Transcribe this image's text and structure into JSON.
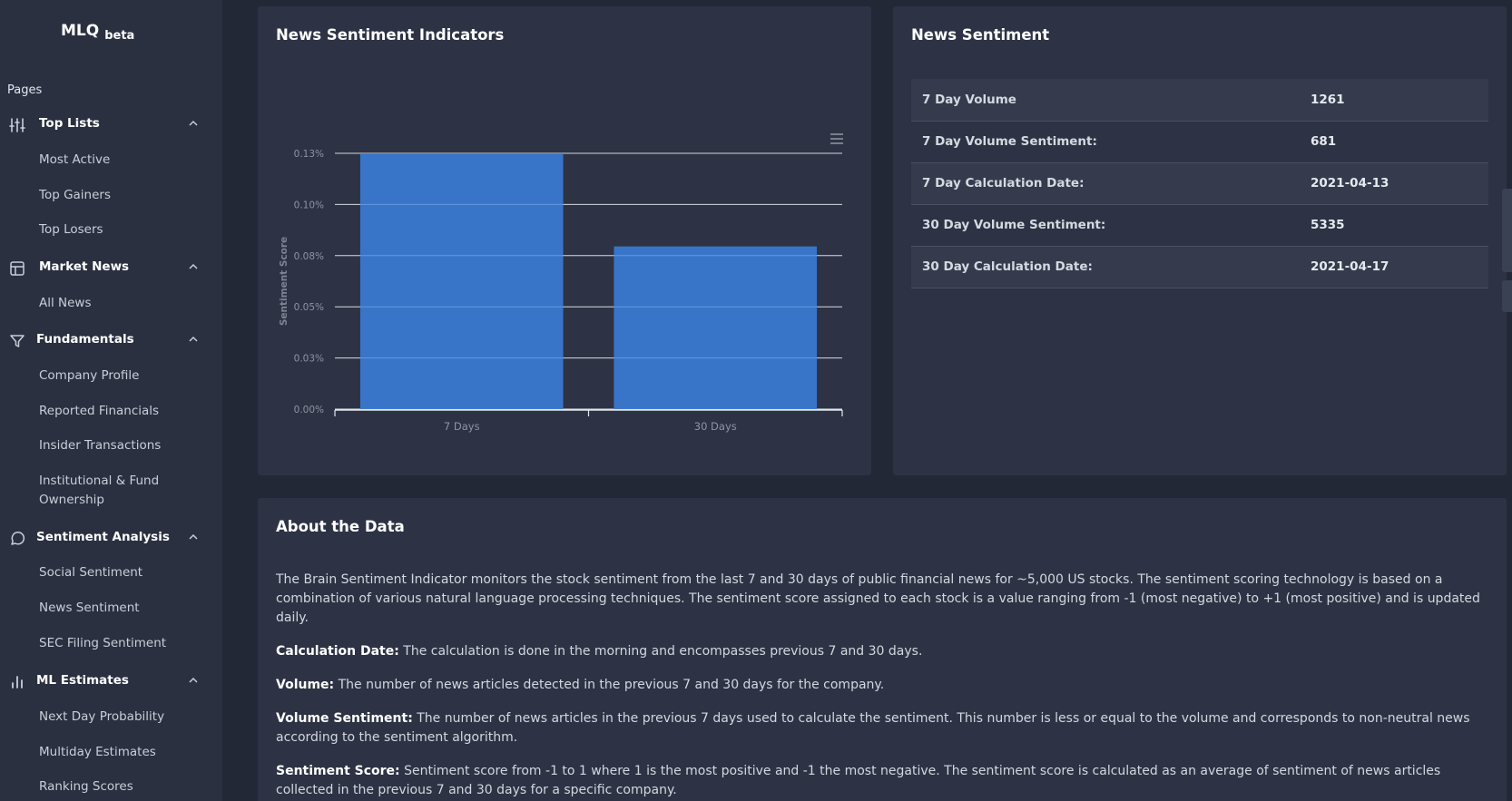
{
  "brand": {
    "name": "MLQ",
    "tag": "beta"
  },
  "sidebar": {
    "pages_label": "Pages",
    "sections": [
      {
        "label": "Top Lists",
        "icon": "sliders-icon",
        "items": [
          "Most Active",
          "Top Gainers",
          "Top Losers"
        ]
      },
      {
        "label": "Market News",
        "icon": "layout-icon",
        "items": [
          "All News"
        ]
      },
      {
        "label": "Fundamentals",
        "icon": "filter-icon",
        "items": [
          "Company Profile",
          "Reported Financials",
          "Insider Transactions",
          "Institutional & Fund Ownership"
        ]
      },
      {
        "label": "Sentiment Analysis",
        "icon": "message-circle-icon",
        "items": [
          "Social Sentiment",
          "News Sentiment",
          "SEC Filing Sentiment"
        ]
      },
      {
        "label": "ML Estimates",
        "icon": "bar-chart-icon",
        "items": [
          "Next Day Probability",
          "Multiday Estimates",
          "Ranking Scores"
        ]
      }
    ]
  },
  "indicators_panel": {
    "title": "News Sentiment Indicators"
  },
  "chart_data": {
    "type": "bar",
    "categories": [
      "7 Days",
      "30 Days"
    ],
    "values": [
      0.125,
      0.0795
    ],
    "ylabel": "Sentiment Score",
    "xlabel": "",
    "ylim": [
      0,
      0.125
    ],
    "yticks": [
      "0.00%",
      "0.03%",
      "0.05%",
      "0.08%",
      "0.10%",
      "0.13%"
    ],
    "bar_color": "#3a7bd5",
    "grid": true
  },
  "sentiment_panel": {
    "title": "News Sentiment",
    "rows": [
      {
        "label": "7 Day Volume",
        "value": "1261"
      },
      {
        "label": "7 Day Volume Sentiment:",
        "value": "681"
      },
      {
        "label": "7 Day Calculation Date:",
        "value": "2021-04-13"
      },
      {
        "label": "30 Day Volume Sentiment:",
        "value": "5335"
      },
      {
        "label": "30 Day Calculation Date:",
        "value": "2021-04-17"
      }
    ]
  },
  "about": {
    "title": "About the Data",
    "intro": "The Brain Sentiment Indicator monitors the stock sentiment from the last 7 and 30 days of public financial news for ~5,000 US stocks. The sentiment scoring technology is based on a combination of various natural language processing techniques. The sentiment score assigned to each stock is a value ranging from -1 (most negative) to +1 (most positive) and is updated daily.",
    "definitions": [
      {
        "term": "Calculation Date:",
        "text": " The calculation is done in the morning and encompasses previous 7 and 30 days."
      },
      {
        "term": "Volume:",
        "text": " The number of news articles detected in the previous 7 and 30 days for the company."
      },
      {
        "term": "Volume Sentiment:",
        "text": " The number of news articles in the previous 7 days used to calculate the sentiment. This number is less or equal to the volume and corresponds to non-neutral news according to the sentiment algorithm."
      },
      {
        "term": "Sentiment Score:",
        "text": " Sentiment score from -1 to 1 where 1 is the most positive and -1 the most negative. The sentiment score is calculated as an average of sentiment of news articles collected in the previous 7 and 30 days for a specific company."
      }
    ]
  }
}
